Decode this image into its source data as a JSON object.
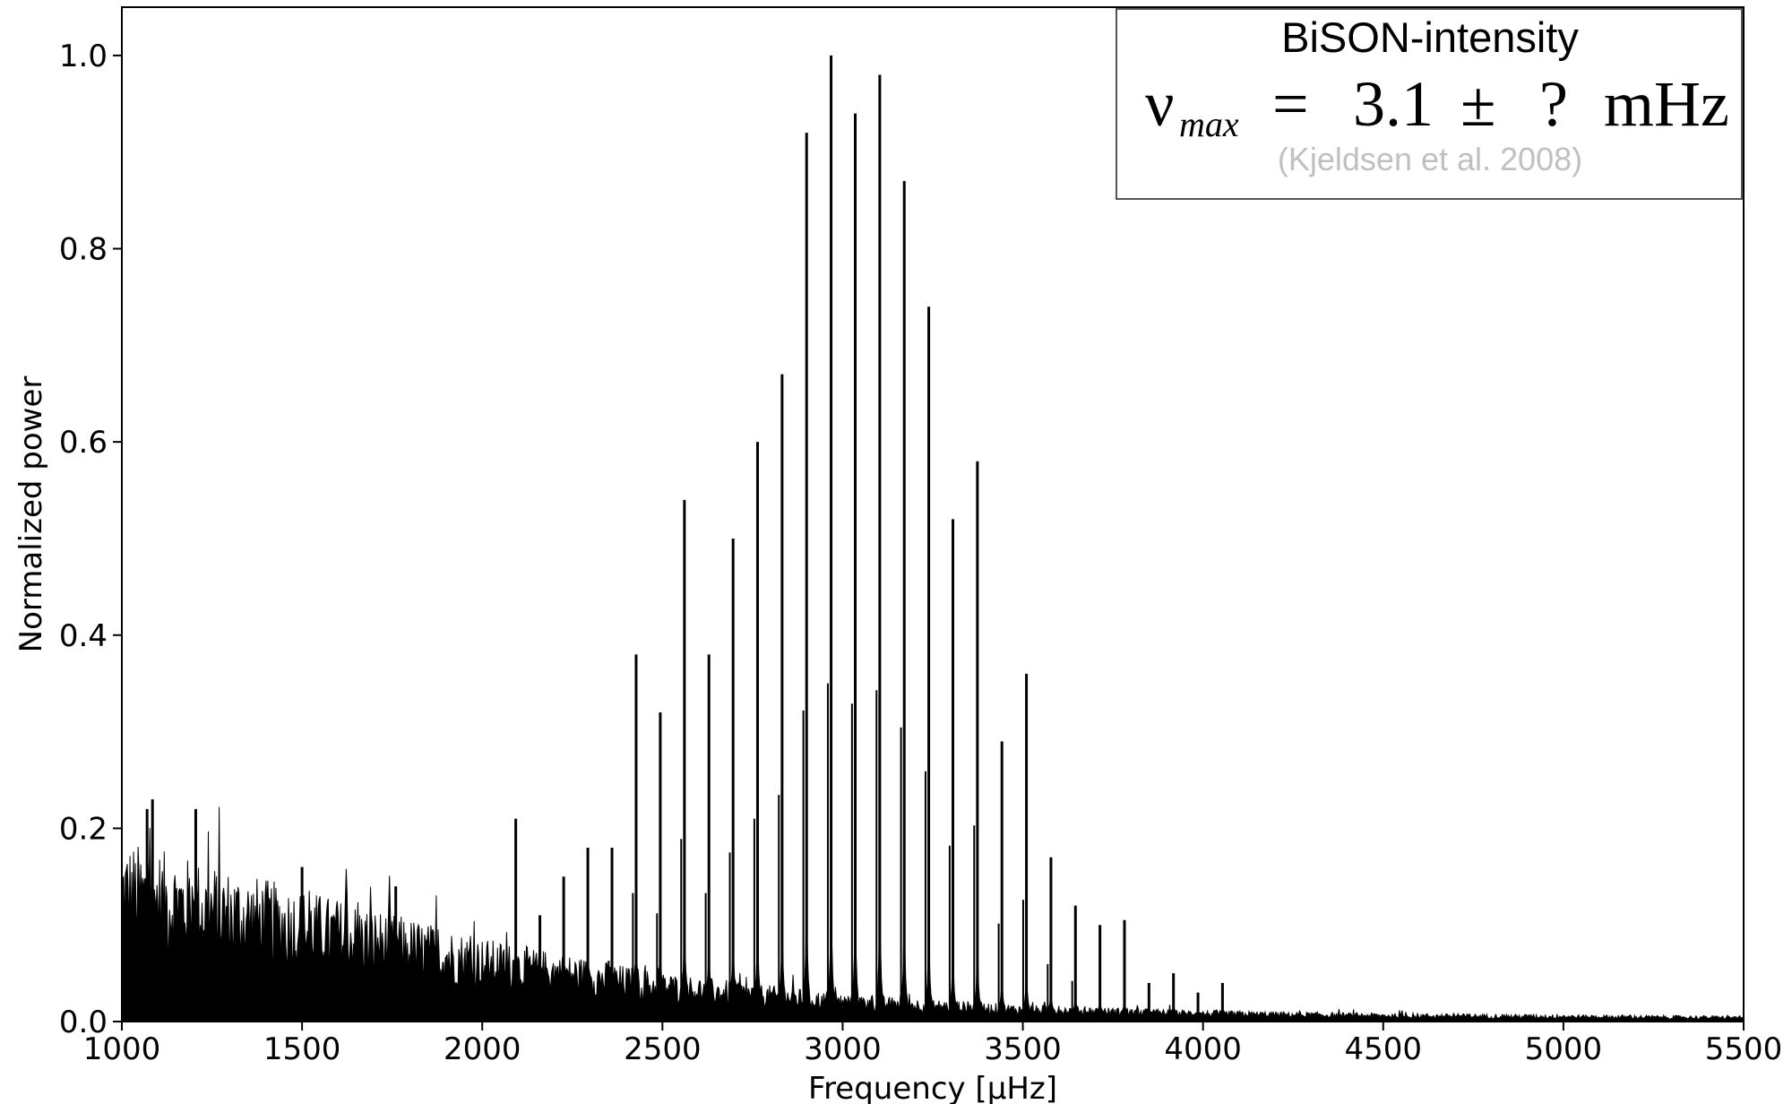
{
  "chart_data": {
    "type": "line",
    "title": "",
    "xlabel": "Frequency [μHz]",
    "ylabel": "Normalized power",
    "xlim": [
      1000,
      5500
    ],
    "ylim": [
      0.0,
      1.05
    ],
    "grid": false,
    "x_ticks": [
      1000,
      1500,
      2000,
      2500,
      3000,
      3500,
      4000,
      4500,
      5000,
      5500
    ],
    "x_tick_labels": [
      "1000",
      "1500",
      "2000",
      "2500",
      "3000",
      "3500",
      "4000",
      "4500",
      "5000",
      "5500"
    ],
    "y_ticks": [
      0.0,
      0.2,
      0.4,
      0.6,
      0.8,
      1.0
    ],
    "y_tick_labels": [
      "0.0",
      "0.2",
      "0.4",
      "0.6",
      "0.8",
      "1.0"
    ],
    "series": [
      {
        "color": "#000000",
        "peaks": {
          "x": [
            1070,
            1085,
            1205,
            1500,
            1760,
            2093,
            2160,
            2226,
            2293,
            2360,
            2427,
            2494,
            2561,
            2629,
            2696,
            2764,
            2832,
            2900,
            2968,
            3035,
            3103,
            3171,
            3239,
            3306,
            3374,
            3442,
            3510,
            3578,
            3646,
            3714,
            3782,
            3850,
            3918,
            3986,
            4054
          ],
          "y": [
            0.22,
            0.23,
            0.22,
            0.16,
            0.14,
            0.21,
            0.11,
            0.15,
            0.18,
            0.18,
            0.38,
            0.32,
            0.54,
            0.38,
            0.5,
            0.6,
            0.67,
            0.92,
            1.0,
            0.94,
            0.98,
            0.87,
            0.74,
            0.52,
            0.58,
            0.29,
            0.36,
            0.17,
            0.12,
            0.1,
            0.105,
            0.04,
            0.05,
            0.03,
            0.04
          ]
        },
        "background": {
          "x": [
            1000,
            1500,
            2000,
            2500,
            3000,
            3500,
            4000,
            4500,
            5000,
            5500
          ],
          "y": [
            0.13,
            0.095,
            0.06,
            0.035,
            0.02,
            0.012,
            0.008,
            0.006,
            0.005,
            0.004
          ]
        }
      }
    ],
    "legend": {
      "placement": "top-right",
      "title": "BiSON-intensity",
      "symbol": "ν",
      "subscript": "max",
      "equals": "=",
      "value": "3.1",
      "pm": "±",
      "uncertainty": "?",
      "unit": "mHz",
      "reference": "(Kjeldsen et al. 2008)"
    }
  }
}
